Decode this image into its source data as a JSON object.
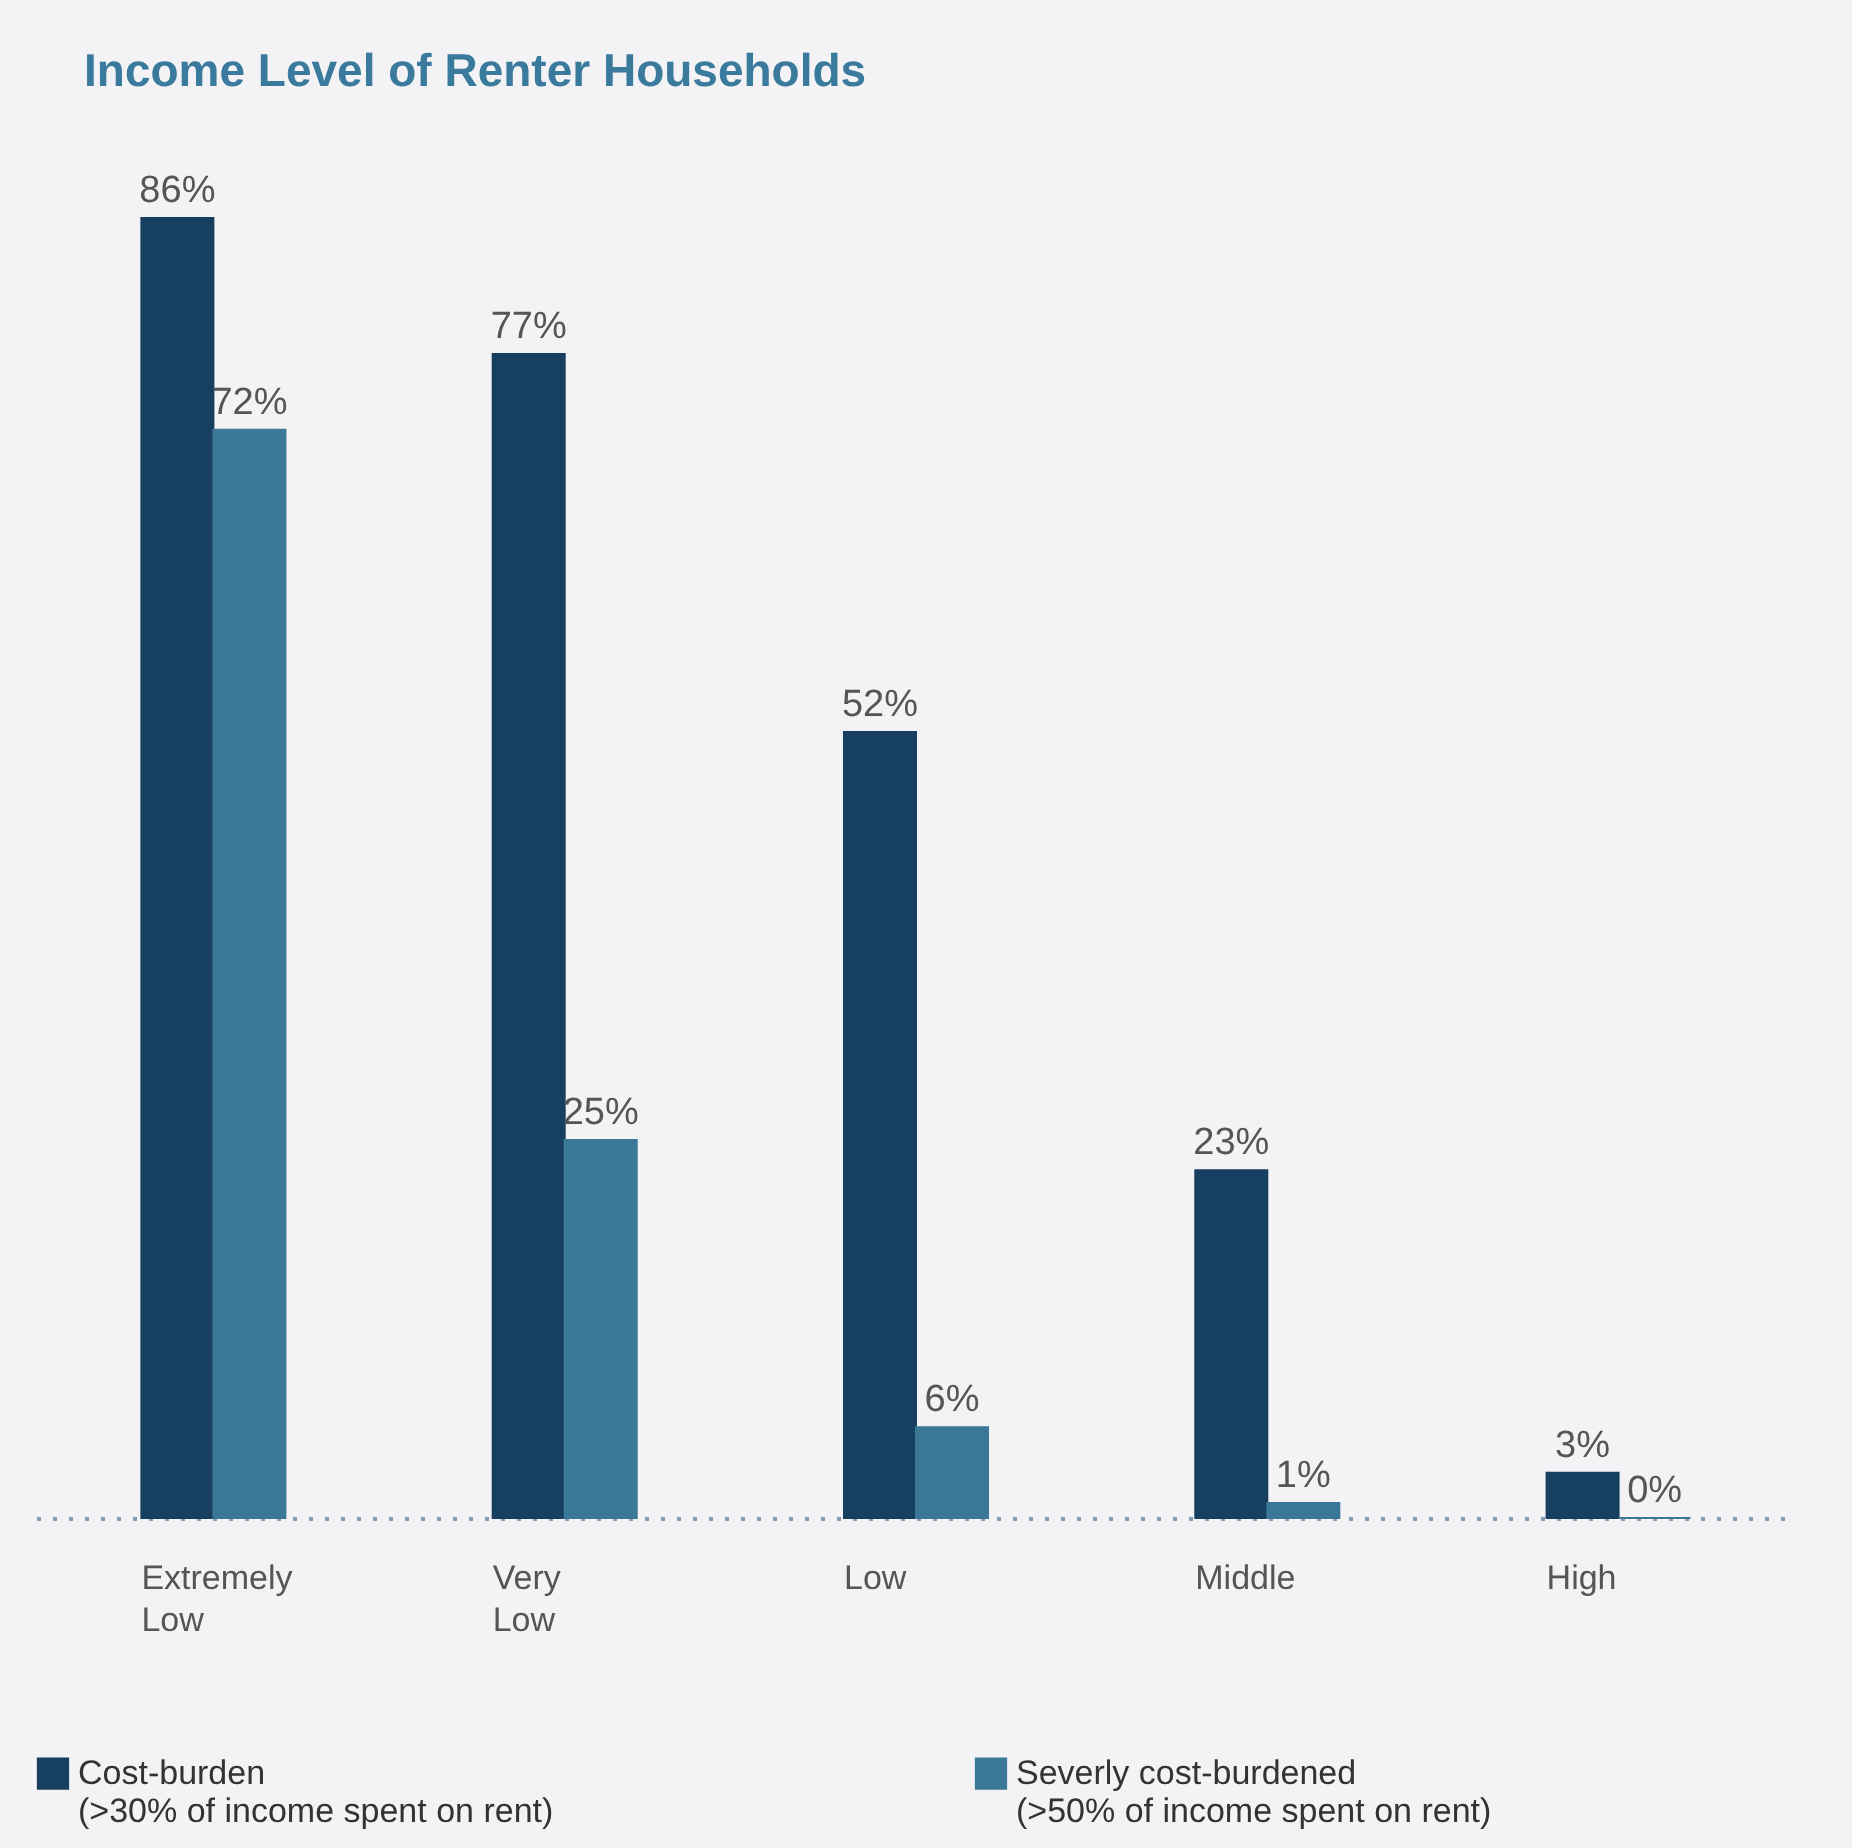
{
  "chart_data": {
    "type": "bar",
    "title": "Income Level of Renter Households",
    "categories": [
      "Extremely Low",
      "Very Low",
      "Low",
      "Middle",
      "High"
    ],
    "series": [
      {
        "name": "Cost-burden\n(>30% of income spent on rent)",
        "color": "#173f60",
        "values": [
          86,
          77,
          52,
          23,
          3
        ],
        "value_labels": [
          "86%",
          "77%",
          "52%",
          "23%",
          "3%"
        ]
      },
      {
        "name": "Severly cost-burdened\n(>50% of income spent on rent)",
        "color": "#3b7898",
        "values": [
          72,
          25,
          6,
          1,
          0
        ],
        "value_labels": [
          "72%",
          "25%",
          "6%",
          "1%",
          "0%"
        ]
      }
    ],
    "legend": "bottom",
    "grid": false
  }
}
